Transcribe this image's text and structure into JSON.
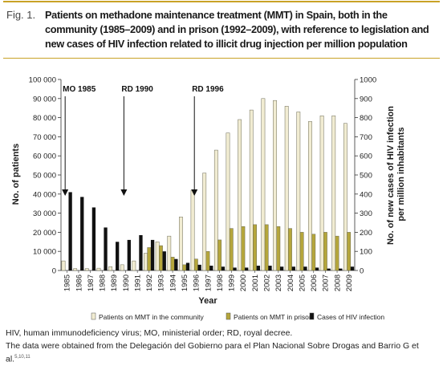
{
  "figure": {
    "number": "Fig. 1.",
    "title": "Patients on methadone maintenance treatment (MMT) in Spain, both in the community (1985–2009) and in prison (1992–2009), with reference to legislation and new cases of HIV infection related to illicit drug injection per million population"
  },
  "chart_data": {
    "type": "bar",
    "categories": [
      "1985",
      "1986",
      "1987",
      "1988",
      "1989",
      "1990",
      "1991",
      "1992",
      "1993",
      "1994",
      "1995",
      "1996",
      "1997",
      "1998",
      "1999",
      "2000",
      "2001",
      "2002",
      "2003",
      "2004",
      "2005",
      "2006",
      "2007",
      "2008",
      "2009"
    ],
    "series": [
      {
        "name": "Patients on MMT in the community",
        "axis": "left",
        "color": "#f1ecd2",
        "values": [
          5000,
          1000,
          1000,
          1200,
          2000,
          3000,
          5000,
          9000,
          15000,
          18000,
          28000,
          42000,
          51000,
          63000,
          72000,
          79000,
          84000,
          90000,
          89000,
          86000,
          83000,
          78000,
          81000,
          81000,
          77000
        ]
      },
      {
        "name": "Patients on MMT in prison",
        "axis": "left",
        "color": "#b5a63b",
        "values": [
          null,
          null,
          null,
          null,
          null,
          null,
          null,
          12000,
          13000,
          7000,
          3000,
          6000,
          10000,
          16000,
          22000,
          23000,
          24000,
          24000,
          23000,
          22000,
          20000,
          19000,
          20000,
          18000,
          20000
        ]
      },
      {
        "name": "Cases of HIV infection",
        "axis": "right",
        "color": "#111111",
        "values": [
          410,
          385,
          330,
          225,
          150,
          160,
          185,
          160,
          100,
          60,
          40,
          30,
          25,
          20,
          15,
          15,
          25,
          25,
          20,
          20,
          20,
          15,
          10,
          10,
          20
        ]
      }
    ],
    "xlabel": "Year",
    "ylabel": "No. of patients",
    "ylabel_right": "No. of new cases of HIV infection per million inhabitants",
    "ylim": [
      0,
      100000
    ],
    "ylim_right": [
      0,
      1000
    ],
    "yticks": [
      "0",
      "10 000",
      "20 000",
      "30 000",
      "40 000",
      "50 000",
      "60 000",
      "70 000",
      "80 000",
      "90 000",
      "100 000"
    ],
    "yticks_right": [
      "0",
      "100",
      "200",
      "300",
      "400",
      "500",
      "600",
      "700",
      "800",
      "900",
      "1000"
    ],
    "annotations": [
      {
        "label": "MO 1985",
        "year": "1985"
      },
      {
        "label": "RD 1990",
        "year": "1990"
      },
      {
        "label": "RD 1996",
        "year": "1996"
      }
    ],
    "legend_position": "bottom"
  },
  "footnotes": {
    "line1": "HIV, human immunodeficiency virus; MO, ministerial order; RD, royal decree.",
    "line2": "The data were obtained from the Delegación del Gobierno para el Plan Nacional Sobre Drogas and Barrio G et al.",
    "line2_refs": "5,10,11"
  }
}
